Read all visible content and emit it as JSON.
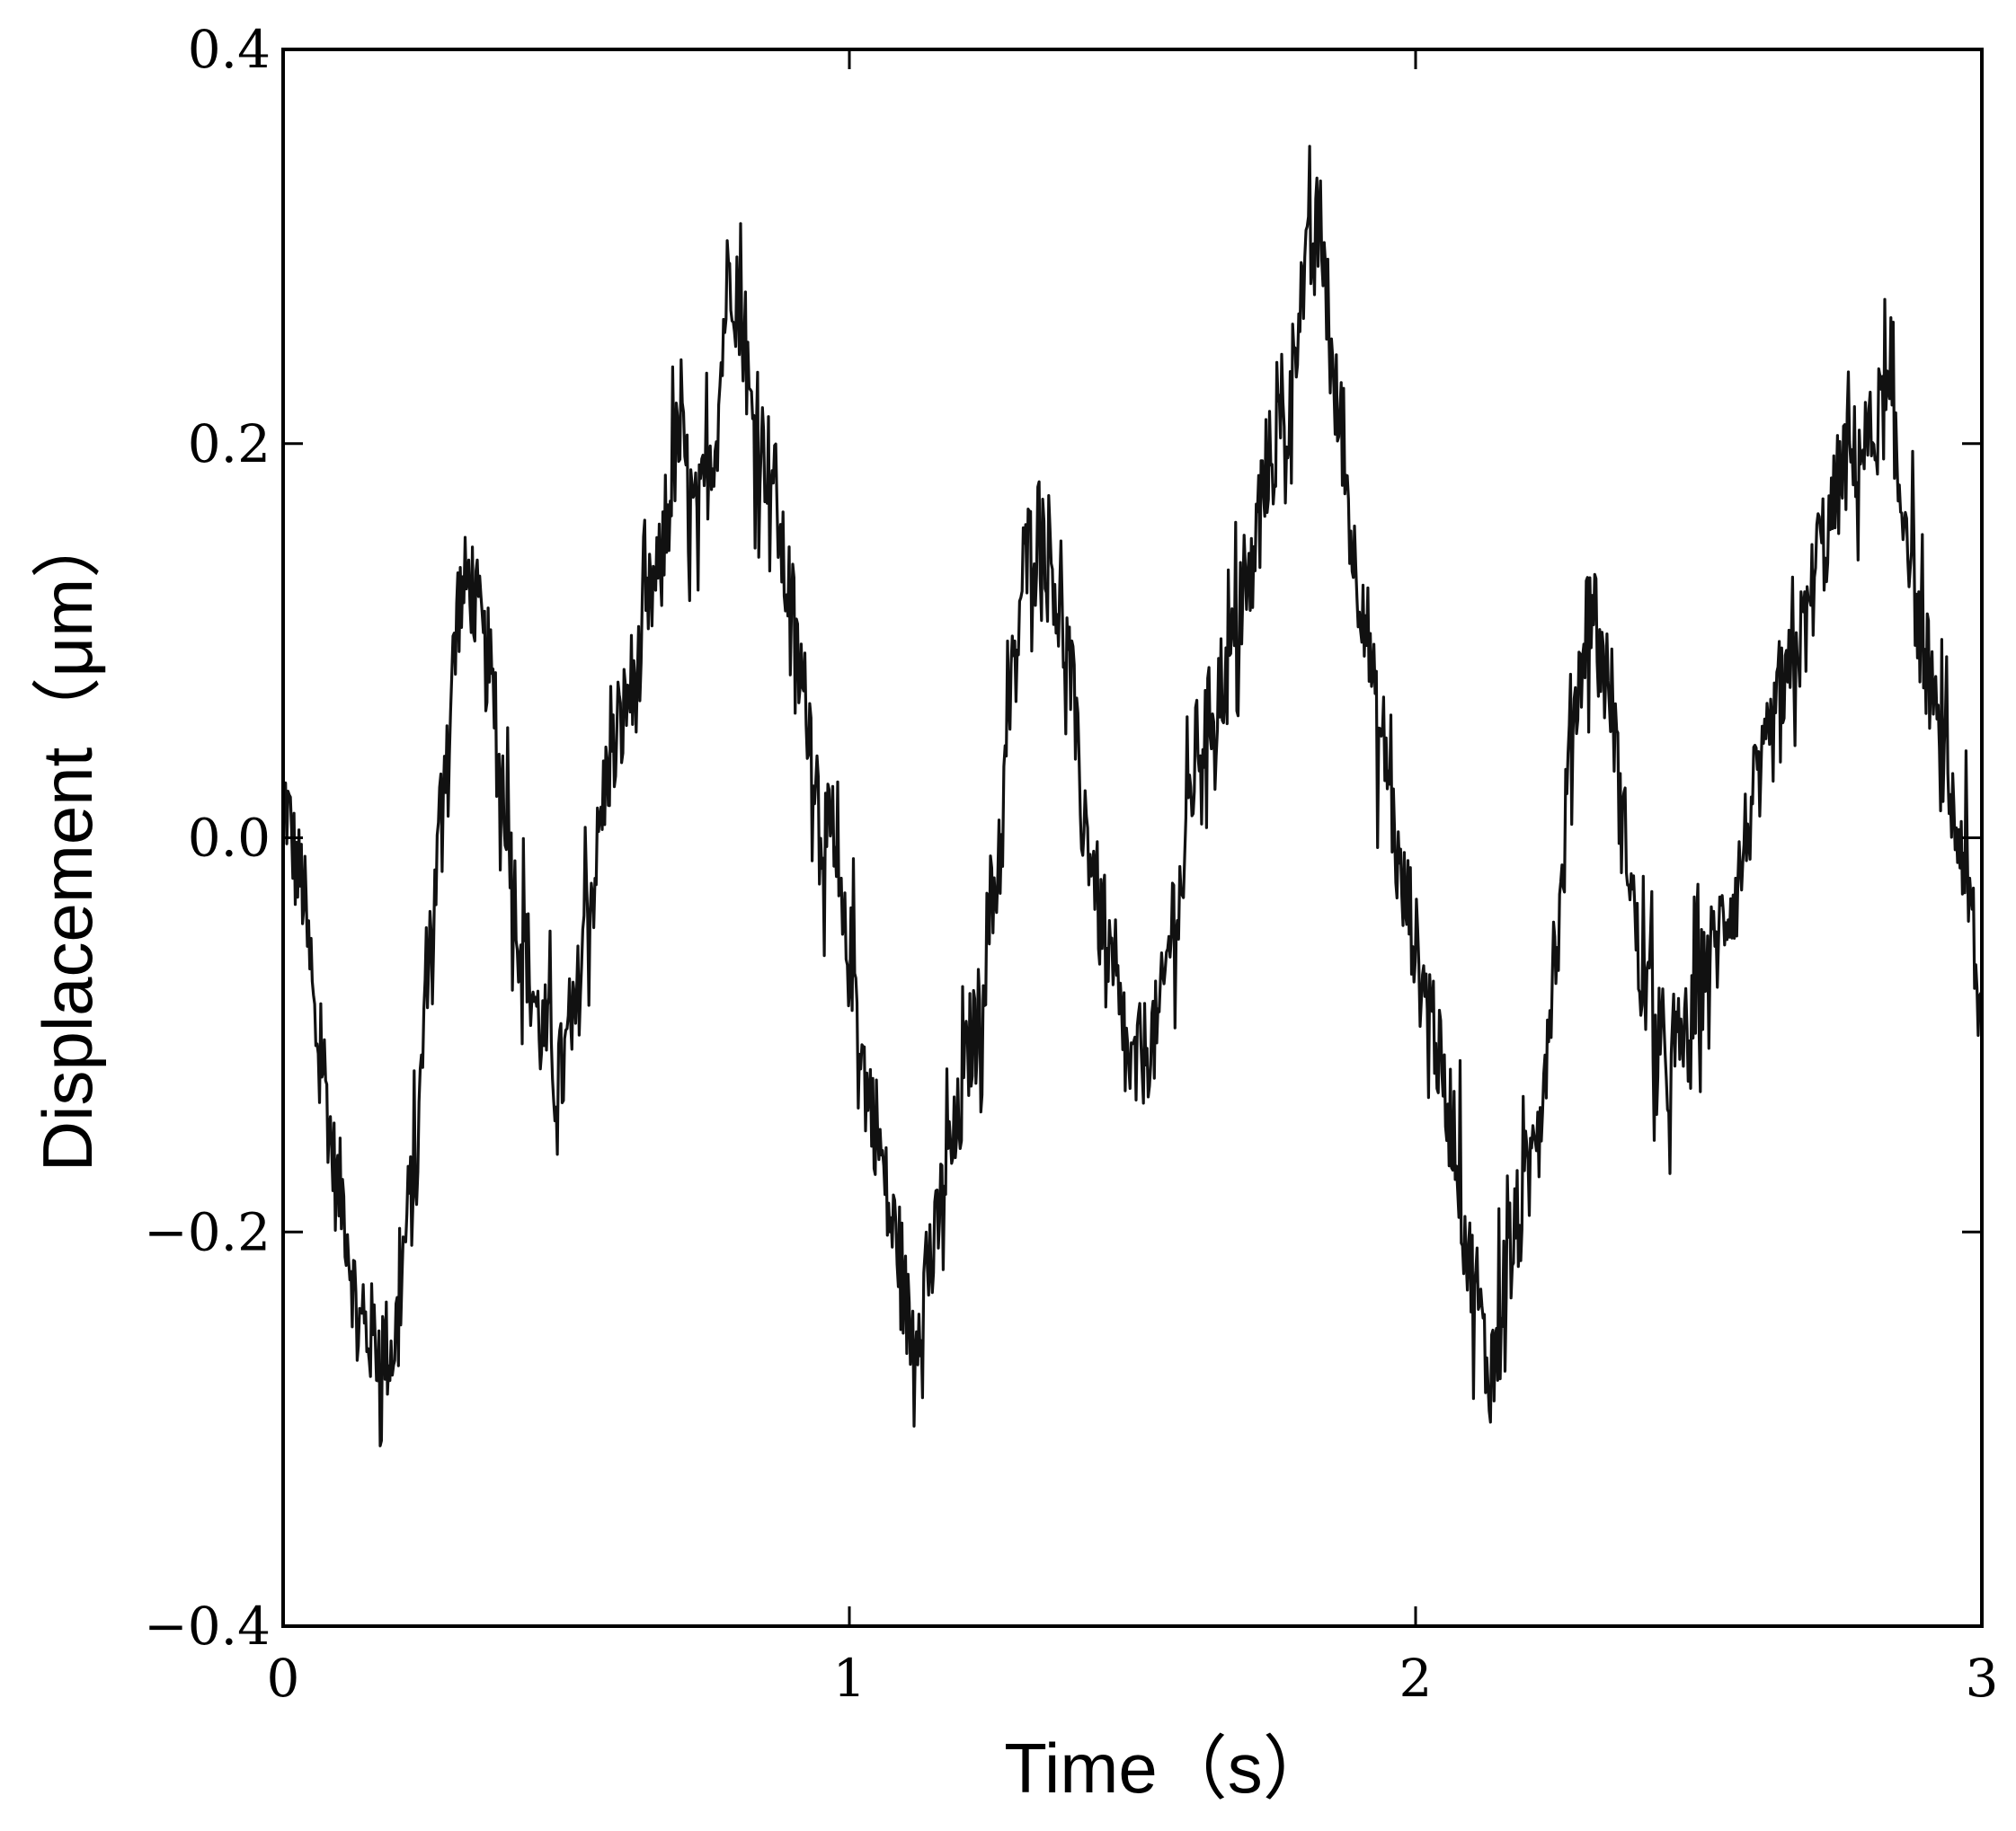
{
  "chart_data": {
    "type": "line",
    "title": "",
    "xlabel": "Time（s）",
    "ylabel": "Displacement（μm）",
    "xlim": [
      0,
      3
    ],
    "ylim": [
      -0.4,
      0.4
    ],
    "grid": false,
    "x_ticks": [
      0,
      1,
      2,
      3
    ],
    "x_tick_labels": [
      "0",
      "1",
      "2",
      "3"
    ],
    "y_ticks": [
      -0.4,
      -0.2,
      0.0,
      0.2,
      0.4
    ],
    "y_tick_labels": [
      "−0.4",
      "−0.2",
      "0.0",
      "0.2",
      "0.4"
    ],
    "line_color": "#111111",
    "noise_amplitude": 0.04,
    "series": [
      {
        "x": [
          0.0,
          0.03,
          0.06,
          0.1,
          0.14,
          0.19,
          0.23,
          0.26,
          0.29,
          0.31,
          0.33,
          0.36,
          0.39,
          0.42,
          0.46,
          0.49,
          0.51,
          0.54,
          0.58,
          0.62,
          0.66,
          0.7,
          0.73,
          0.76,
          0.79,
          0.81,
          0.83,
          0.86,
          0.89,
          0.92,
          0.96,
          1.0,
          1.04,
          1.08,
          1.11,
          1.14,
          1.18,
          1.22,
          1.26,
          1.29,
          1.31,
          1.33,
          1.35,
          1.38,
          1.42,
          1.46,
          1.5,
          1.54,
          1.58,
          1.62,
          1.66,
          1.7,
          1.74,
          1.77,
          1.8,
          1.83,
          1.86,
          1.9,
          1.94,
          1.98,
          2.02,
          2.06,
          2.1,
          2.13,
          2.16,
          2.19,
          2.22,
          2.25,
          2.28,
          2.31,
          2.34,
          2.37,
          2.4,
          2.44,
          2.48,
          2.52,
          2.56,
          2.6,
          2.64,
          2.68,
          2.72,
          2.76,
          2.8,
          2.83,
          2.86,
          2.9,
          2.93,
          2.96,
          3.0
        ],
        "y": [
          0.02,
          -0.02,
          -0.1,
          -0.18,
          -0.25,
          -0.26,
          -0.18,
          -0.05,
          0.05,
          0.12,
          0.13,
          0.09,
          0.02,
          -0.05,
          -0.1,
          -0.12,
          -0.1,
          -0.03,
          0.04,
          0.08,
          0.13,
          0.2,
          0.16,
          0.2,
          0.29,
          0.26,
          0.21,
          0.19,
          0.13,
          0.07,
          0.0,
          -0.06,
          -0.14,
          -0.2,
          -0.25,
          -0.22,
          -0.16,
          -0.1,
          -0.02,
          0.08,
          0.14,
          0.16,
          0.15,
          0.1,
          0.0,
          -0.07,
          -0.12,
          -0.1,
          -0.03,
          0.05,
          0.08,
          0.12,
          0.19,
          0.21,
          0.28,
          0.31,
          0.22,
          0.13,
          0.05,
          -0.03,
          -0.08,
          -0.14,
          -0.22,
          -0.27,
          -0.22,
          -0.19,
          -0.13,
          -0.05,
          0.07,
          0.12,
          0.08,
          0.0,
          -0.07,
          -0.12,
          -0.1,
          -0.06,
          -0.03,
          0.02,
          0.06,
          0.1,
          0.15,
          0.19,
          0.2,
          0.22,
          0.17,
          0.09,
          0.04,
          0.0,
          -0.09
        ]
      }
    ]
  }
}
